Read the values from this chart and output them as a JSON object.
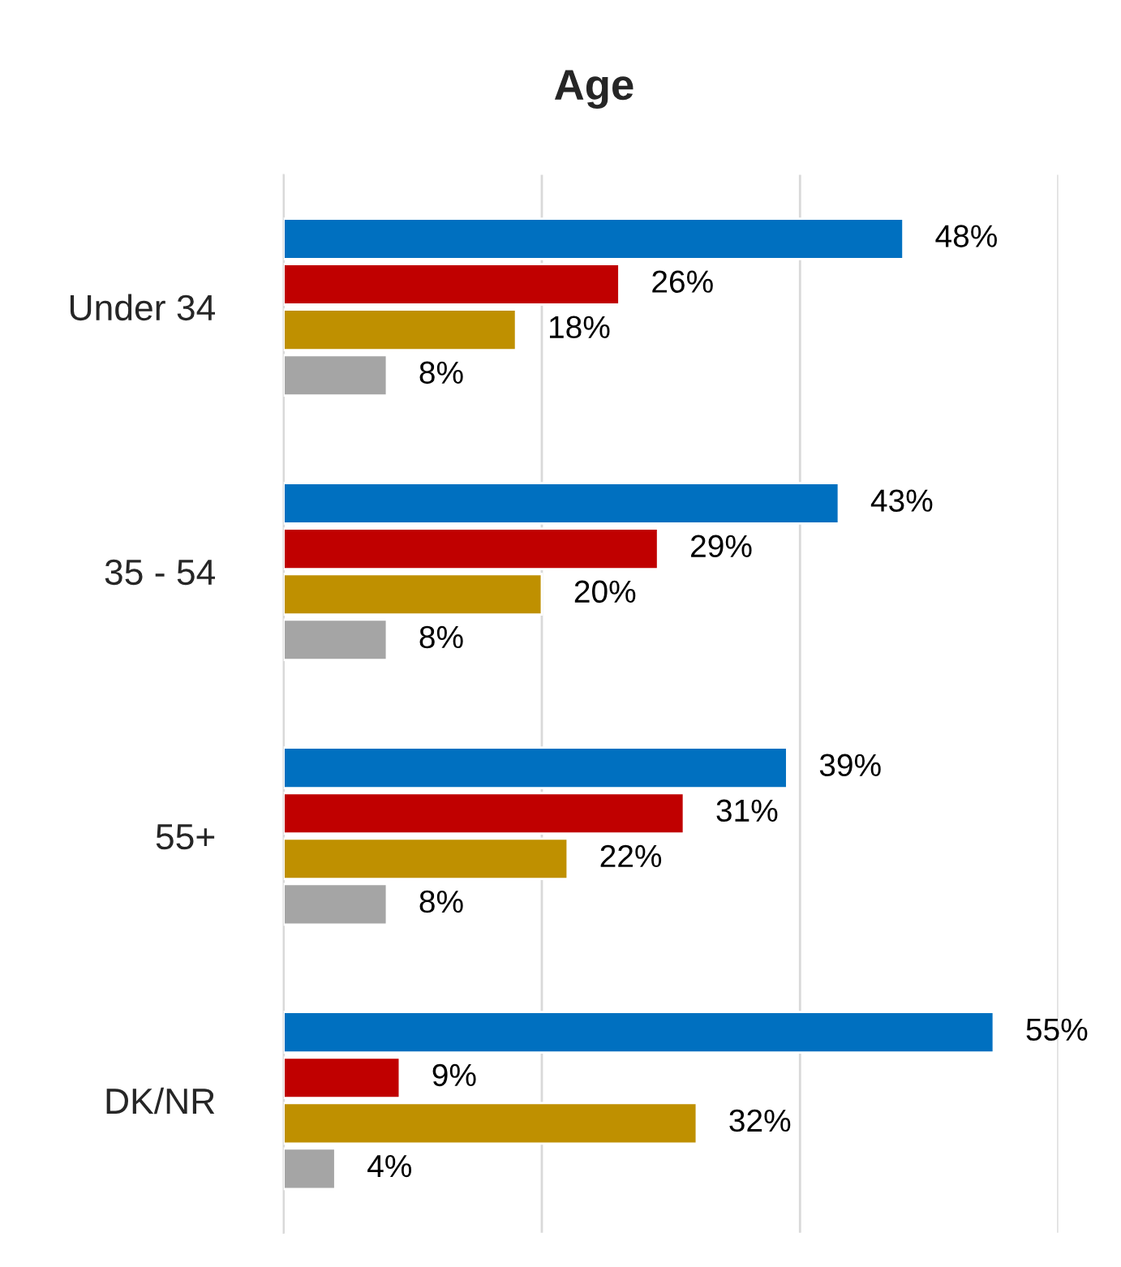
{
  "chart_data": {
    "type": "bar",
    "orientation": "horizontal",
    "title": "Age",
    "categories": [
      "Under 34",
      "35 - 54",
      "55+",
      "DK/NR"
    ],
    "series": [
      {
        "color": "#0070c0",
        "values": [
          48,
          43,
          39,
          55
        ],
        "value_labels": [
          "48%",
          "43%",
          "39%",
          "55%"
        ]
      },
      {
        "color": "#c00000",
        "values": [
          26,
          29,
          31,
          9
        ],
        "value_labels": [
          "26%",
          "29%",
          "31%",
          "9%"
        ]
      },
      {
        "color": "#bf9000",
        "values": [
          18,
          20,
          22,
          32
        ],
        "value_labels": [
          "18%",
          "20%",
          "22%",
          "32%"
        ]
      },
      {
        "color": "#a5a5a5",
        "values": [
          8,
          8,
          8,
          4
        ],
        "value_labels": [
          "8%",
          "8%",
          "8%",
          "4%"
        ]
      }
    ],
    "xlim": [
      0,
      60
    ],
    "xticks": [
      {
        "value": 0,
        "label": null
      },
      {
        "value": 20,
        "label": null
      },
      {
        "value": 40,
        "label": null
      },
      {
        "value": 60,
        "label": null
      }
    ],
    "grid": "x",
    "tick_labels": "y",
    "legend": false
  }
}
